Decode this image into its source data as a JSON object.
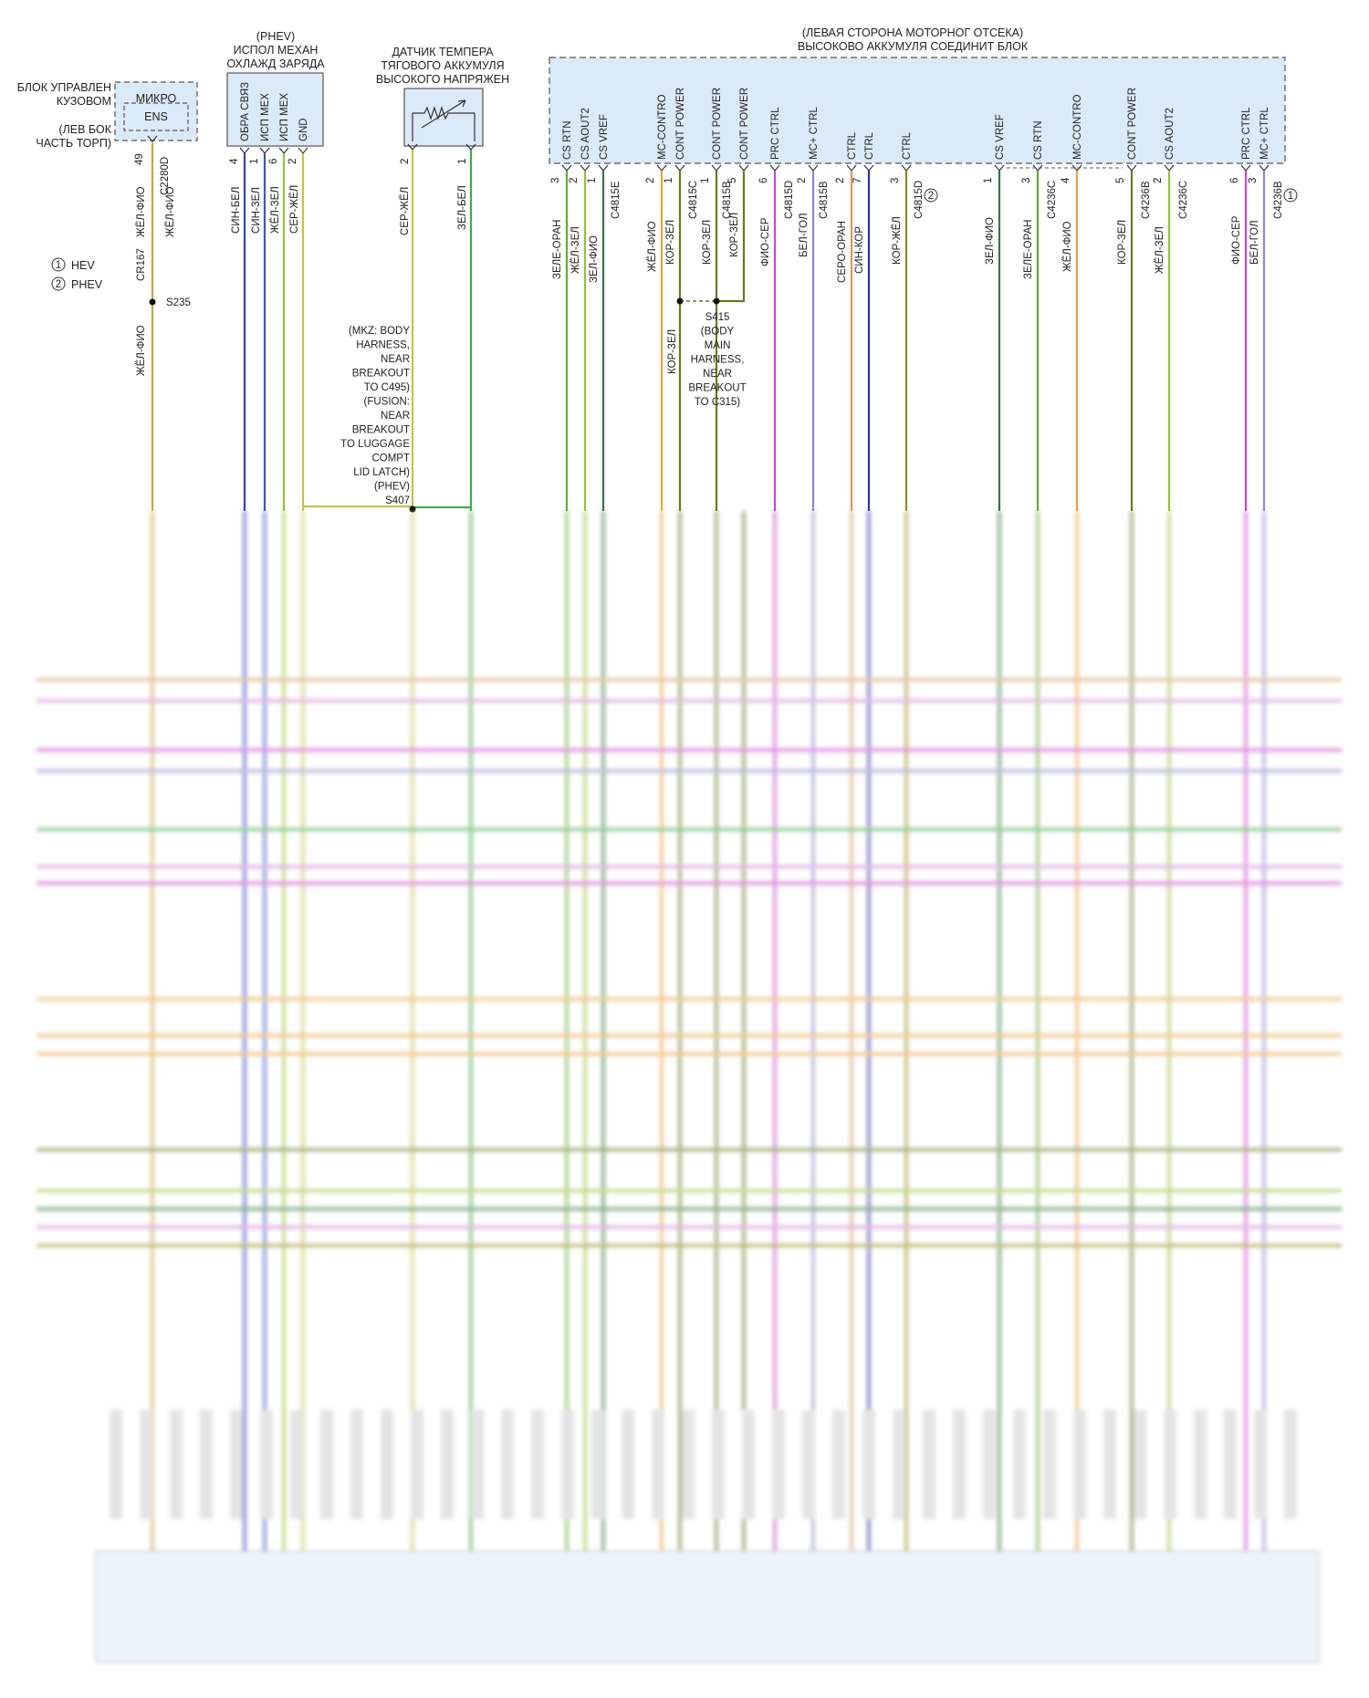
{
  "colors": {
    "module_fill": "#dbeaf8",
    "module_border": "#555555",
    "wire_yellow_violet": "#c4a84a",
    "wire_blue_white": "#3344bb",
    "wire_blue_green": "#3a55c8",
    "wire_yellow_green": "#9bbf3a",
    "wire_gray_yellow": "#c8c050",
    "wire_green_white": "#44a848",
    "wire_green_orange": "#66aa33",
    "wire_green_violet": "#2f7a3a",
    "wire_orange": "#e8a040",
    "wire_brown_green": "#667a22",
    "wire_violet_gray": "#cc44cc",
    "wire_white_blue": "#8888cc",
    "wire_gray_orange": "#d49a60",
    "wire_blue_brown": "#333399",
    "wire_brown_yellow": "#998822",
    "wire_pink": "#d080d0"
  },
  "left_module": {
    "title_lines": [
      "БЛОК УПРАВЛЕН",
      "КУЗОВОМ"
    ],
    "location_lines": [
      "(ЛЕВ БОК",
      "ЧАСТЬ ТОРП)"
    ],
    "micro_label": "МИКРО",
    "ens_label": "ENS",
    "pin": "49",
    "connector": "C2280D",
    "wire_color_top": "ЖЁЛ-ФИО",
    "inline_connector": "CR167",
    "wire_color_inline": "ЖЁЛ-ФИО",
    "splice": "S235",
    "wire_color_below": "ЖЁЛ-ФИО"
  },
  "legend": [
    {
      "num": "1",
      "text": "HEV"
    },
    {
      "num": "2",
      "text": "PHEV"
    }
  ],
  "pump_module": {
    "title_lines": [
      "(PHEV)",
      "ИСПОЛ МЕХАН",
      "ОХЛАЖД ЗАРЯДА"
    ],
    "pins": [
      {
        "name": "ОБРА СВЯЗ",
        "num": "4",
        "wire": "СИН-БЕЛ"
      },
      {
        "name": "ИСП МЕХ",
        "num": "1",
        "wire": "СИН-ЗЕЛ"
      },
      {
        "name": "ИСП МЕХ",
        "num": "6",
        "wire": "ЖЁЛ-ЗЕЛ"
      },
      {
        "name": "GND",
        "num": "2",
        "wire": "СЕР-ЖЁЛ"
      }
    ]
  },
  "temp_sensor": {
    "title_lines": [
      "ДАТЧИК ТЕМПЕРА",
      "ТЯГОВОГО АККУМУЛЯ",
      "ВЫСОКОГО НАПРЯЖЕН"
    ],
    "pins": [
      {
        "num": "2",
        "wire": "СЕР-ЖЁЛ"
      },
      {
        "num": "1",
        "wire": "ЗЕЛ-БЕЛ"
      }
    ],
    "splice_note_lines": [
      "(MKZ: BODY",
      "HARNESS,",
      "NEAR",
      "BREAKOUT",
      "TO C495)",
      "(FUSION:",
      "NEAR",
      "BREAKOUT",
      "TO LUGGAGE",
      "COMPT",
      "LID LATCH)",
      "(PHEV)",
      "S407"
    ]
  },
  "bjb": {
    "title_lines": [
      "(ЛЕВАЯ СТОРОНА МОТОРНОГ ОТСЕКА)",
      "ВЫСОКОВО АККУМУЛЯ СОЕДИНИТ БЛОК"
    ],
    "pins": [
      {
        "name": "CS RTN",
        "num": "3",
        "wire": "ЗЕЛЕ-ОРАН"
      },
      {
        "name": "CS AOUT2",
        "num": "2",
        "wire": "ЖЁЛ-ЗЕЛ"
      },
      {
        "name": "CS VREF",
        "num": "1",
        "wire": "ЗЕЛ-ФИО"
      },
      {
        "name": "MC-CONTRO",
        "num": "2",
        "wire": "ЖЁЛ-ФИО"
      },
      {
        "name": "CONT POWER",
        "num": "1",
        "wire": "КОР-ЗЕЛ"
      },
      {
        "name": "CONT POWER",
        "num": "1",
        "wire": "КОР-ЗЕЛ"
      },
      {
        "name": "CONT POWER",
        "num": "5",
        "wire": "КОР-ЗЕЛ"
      },
      {
        "name": "PRC CTRL",
        "num": "6",
        "wire": "ФИО-СЕР"
      },
      {
        "name": "MC+ CTRL",
        "num": "2",
        "wire": "БЕЛ-ГОЛ"
      },
      {
        "name": "CTRL",
        "num": "2",
        "wire": "СЕРО-ОРАН"
      },
      {
        "name": "CTRL",
        "num": "7",
        "wire": "СИН-КОР"
      },
      {
        "name": "CTRL",
        "num": "3",
        "wire": "КОР-ЖЁЛ"
      },
      {
        "name": "CS VREF",
        "num": "1",
        "wire": "ЗЕЛ-ФИО"
      },
      {
        "name": "CS RTN",
        "num": "3",
        "wire": "ЗЕЛЕ-ОРАН"
      },
      {
        "name": "MC-CONTRO",
        "num": "4",
        "wire": "ЖЁЛ-ФИО"
      },
      {
        "name": "CONT POWER",
        "num": "5",
        "wire": "КОР-ЗЕЛ"
      },
      {
        "name": "CS AOUT2",
        "num": "2",
        "wire": "ЖЁЛ-ЗЕЛ"
      },
      {
        "name": "PRC CTRL",
        "num": "6",
        "wire": "ФИО-СЕР"
      },
      {
        "name": "MC+ CTRL",
        "num": "3",
        "wire": "БЕЛ-ГОЛ"
      }
    ],
    "connectors": [
      "C4815E",
      "C4815C",
      "C4815B",
      "C4815D",
      "C4815B",
      "C4815D",
      "C4236C",
      "C4236B",
      "C4236C",
      "C4236B"
    ],
    "kor_zel_label": "КОР-ЗЕЛ",
    "splice_note_lines": [
      "S415",
      "(BODY",
      "MAIN",
      "HARNESS,",
      "NEAR",
      "BREAKOUT",
      "TO C315)"
    ]
  }
}
